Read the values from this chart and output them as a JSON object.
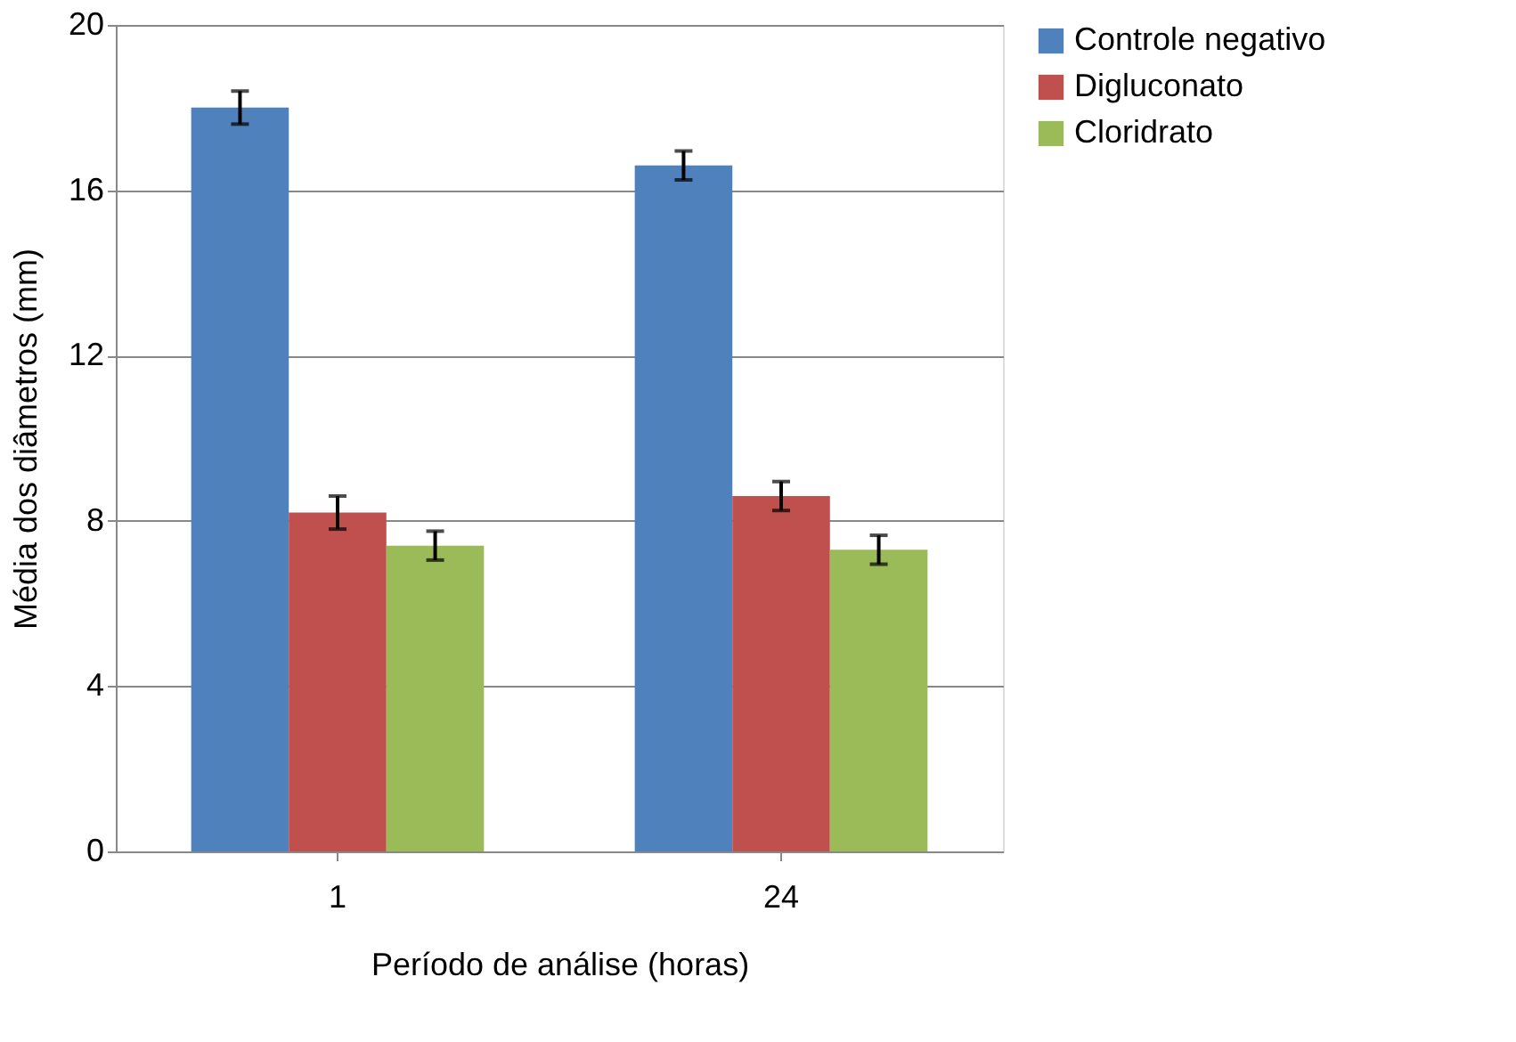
{
  "chart_data": {
    "type": "bar",
    "xlabel": "Período de análise (horas)",
    "ylabel": "Média dos diâmetros (mm)",
    "categories": [
      "1",
      "24"
    ],
    "series": [
      {
        "name": "Controle negativo",
        "color": "#4f81bd",
        "values": [
          18.0,
          16.6
        ],
        "errors": [
          0.4,
          0.35
        ]
      },
      {
        "name": "Digluconato",
        "color": "#c0504d",
        "values": [
          8.2,
          8.6
        ],
        "errors": [
          0.4,
          0.35
        ]
      },
      {
        "name": "Cloridrato",
        "color": "#9bbb59",
        "values": [
          7.4,
          7.3
        ],
        "errors": [
          0.35,
          0.35
        ]
      }
    ],
    "ylim": [
      0,
      20
    ],
    "yticks": [
      0,
      4,
      8,
      12,
      16,
      20
    ],
    "grid": "y",
    "legend": "right"
  }
}
